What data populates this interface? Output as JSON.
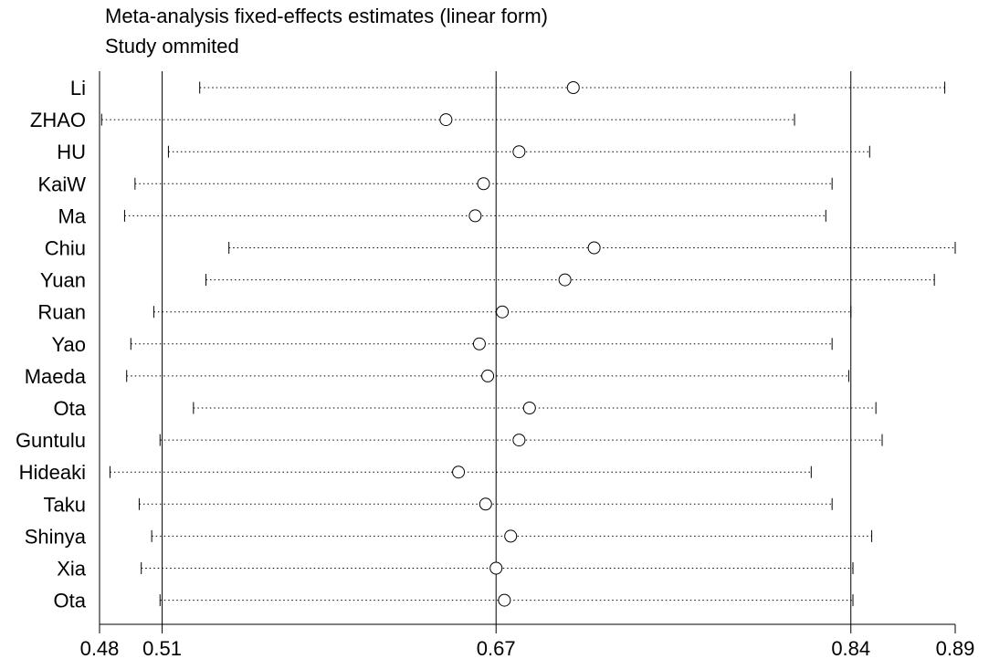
{
  "chart_data": {
    "type": "scatter",
    "title": "Meta-analysis fixed-effects estimates (linear form)",
    "subtitle": "Study ommited",
    "x_axis": {
      "min": 0.48,
      "max": 0.89,
      "ticks": [
        0.48,
        0.51,
        0.67,
        0.84,
        0.89
      ],
      "tick_labels": [
        "0.48",
        "0.51",
        "0.67",
        "0.84",
        "0.89"
      ]
    },
    "reference_lines": [
      0.51,
      0.67,
      0.84
    ],
    "grid": false,
    "series": [
      {
        "studies": [
          {
            "label": "Li",
            "estimate": 0.707,
            "lower": 0.528,
            "upper": 0.885
          },
          {
            "label": "ZHAO",
            "estimate": 0.646,
            "lower": 0.481,
            "upper": 0.813
          },
          {
            "label": "HU",
            "estimate": 0.681,
            "lower": 0.513,
            "upper": 0.849
          },
          {
            "label": "KaiW",
            "estimate": 0.664,
            "lower": 0.497,
            "upper": 0.831
          },
          {
            "label": "Ma",
            "estimate": 0.66,
            "lower": 0.492,
            "upper": 0.828
          },
          {
            "label": "Chiu",
            "estimate": 0.717,
            "lower": 0.542,
            "upper": 0.89
          },
          {
            "label": "Yuan",
            "estimate": 0.703,
            "lower": 0.531,
            "upper": 0.88
          },
          {
            "label": "Ruan",
            "estimate": 0.673,
            "lower": 0.506,
            "upper": 0.84
          },
          {
            "label": "Yao",
            "estimate": 0.662,
            "lower": 0.495,
            "upper": 0.831
          },
          {
            "label": "Maeda",
            "estimate": 0.666,
            "lower": 0.493,
            "upper": 0.839
          },
          {
            "label": "Ota",
            "estimate": 0.686,
            "lower": 0.525,
            "upper": 0.852
          },
          {
            "label": "Guntulu",
            "estimate": 0.681,
            "lower": 0.509,
            "upper": 0.855
          },
          {
            "label": "Hideaki",
            "estimate": 0.652,
            "lower": 0.485,
            "upper": 0.821
          },
          {
            "label": "Taku",
            "estimate": 0.665,
            "lower": 0.499,
            "upper": 0.831
          },
          {
            "label": "Shinya",
            "estimate": 0.677,
            "lower": 0.505,
            "upper": 0.85
          },
          {
            "label": "Xia",
            "estimate": 0.67,
            "lower": 0.5,
            "upper": 0.841
          },
          {
            "label": "Ota",
            "estimate": 0.674,
            "lower": 0.509,
            "upper": 0.841
          }
        ]
      }
    ]
  }
}
